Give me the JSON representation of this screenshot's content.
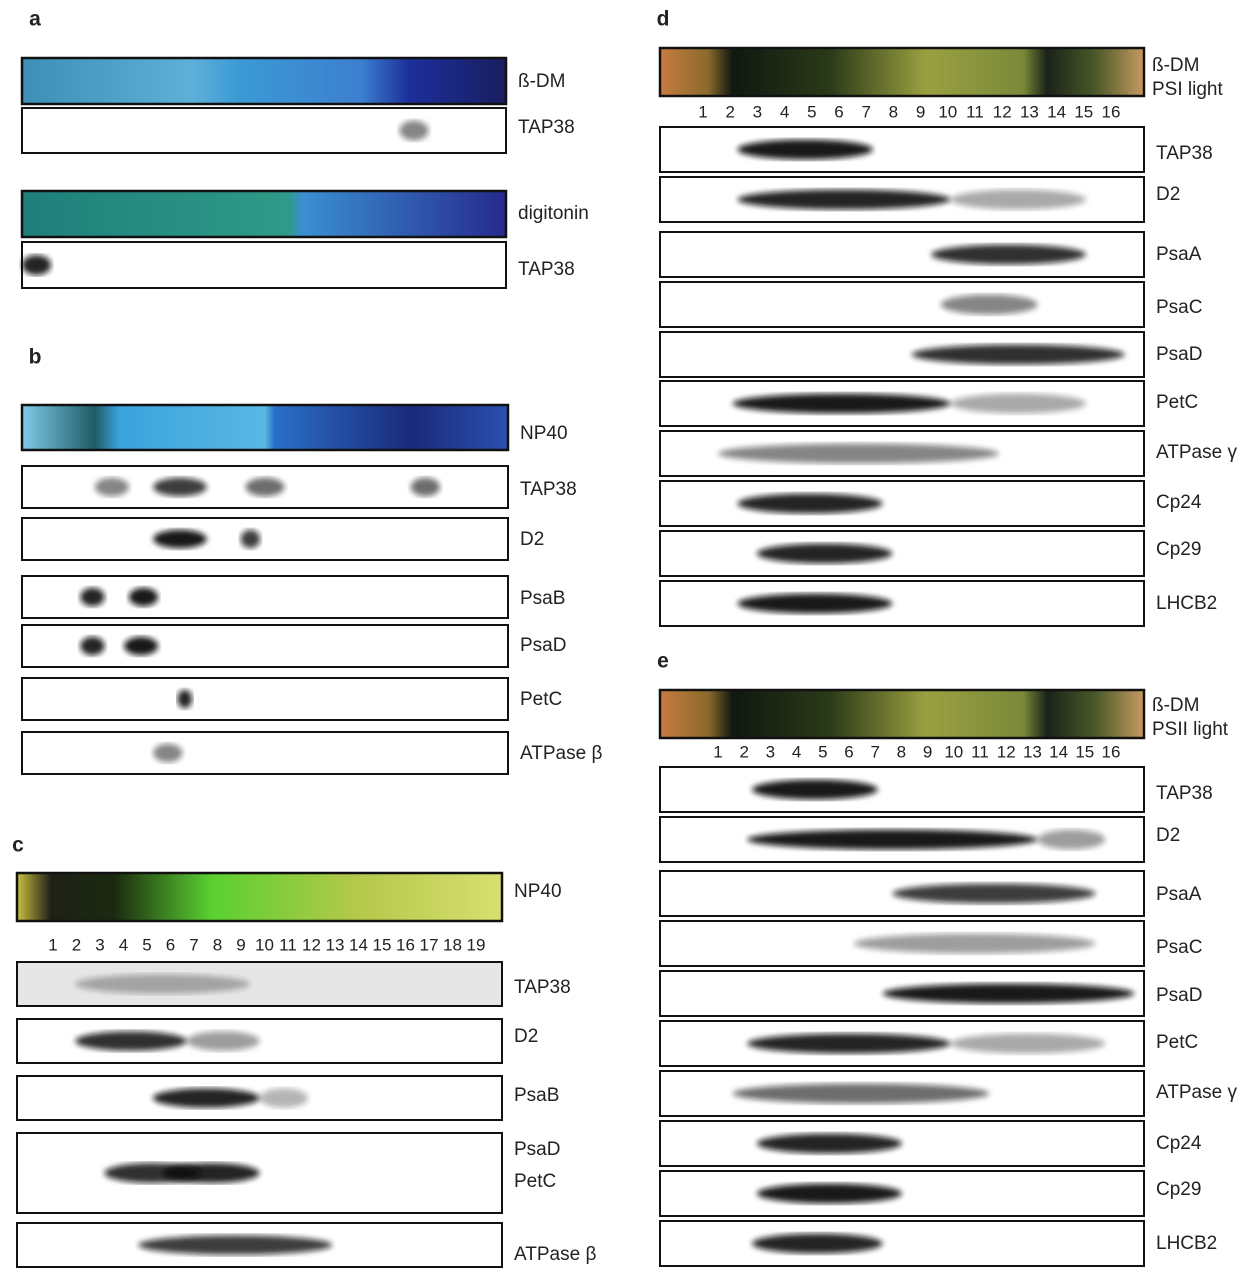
{
  "panels": [
    {
      "label": "a",
      "strips": [
        {
          "labels": [
            "ß-DM"
          ]
        },
        {
          "labels": [
            "TAP38"
          ]
        },
        {
          "labels": [
            "digitonin"
          ]
        },
        {
          "labels": [
            "TAP38"
          ]
        }
      ]
    },
    {
      "label": "b",
      "strips": [
        {
          "labels": [
            "NP40"
          ]
        },
        {
          "labels": [
            "TAP38"
          ]
        },
        {
          "labels": [
            "D2"
          ]
        },
        {
          "labels": [
            "PsaB"
          ]
        },
        {
          "labels": [
            "PsaD"
          ]
        },
        {
          "labels": [
            "PetC"
          ]
        },
        {
          "labels": [
            "ATPase β"
          ]
        }
      ]
    },
    {
      "label": "c",
      "lanes": [
        1,
        2,
        3,
        4,
        5,
        6,
        7,
        8,
        9,
        10,
        11,
        12,
        13,
        14,
        15,
        16,
        17,
        18,
        19
      ],
      "strips": [
        {
          "labels": [
            "NP40"
          ]
        },
        {
          "labels": [
            "TAP38"
          ]
        },
        {
          "labels": [
            "D2"
          ]
        },
        {
          "labels": [
            "PsaB"
          ]
        },
        {
          "labels": [
            "PsaD",
            "PetC"
          ]
        },
        {
          "labels": [
            "ATPase β"
          ]
        }
      ]
    },
    {
      "label": "d",
      "lanes": [
        1,
        2,
        3,
        4,
        5,
        6,
        7,
        8,
        9,
        10,
        11,
        12,
        13,
        14,
        15,
        16
      ],
      "strips": [
        {
          "labels": [
            "ß-DM",
            "PSI light"
          ]
        },
        {
          "labels": [
            "TAP38"
          ]
        },
        {
          "labels": [
            "D2"
          ]
        },
        {
          "labels": [
            "PsaA"
          ]
        },
        {
          "labels": [
            "PsaC"
          ]
        },
        {
          "labels": [
            "PsaD"
          ]
        },
        {
          "labels": [
            "PetC"
          ]
        },
        {
          "labels": [
            "ATPase γ"
          ]
        },
        {
          "labels": [
            "Cp24"
          ]
        },
        {
          "labels": [
            "Cp29"
          ]
        },
        {
          "labels": [
            "LHCB2"
          ]
        }
      ]
    },
    {
      "label": "e",
      "lanes": [
        1,
        2,
        3,
        4,
        5,
        6,
        7,
        8,
        9,
        10,
        11,
        12,
        13,
        14,
        15,
        16
      ],
      "strips": [
        {
          "labels": [
            "ß-DM",
            "PSII light"
          ]
        },
        {
          "labels": [
            "TAP38"
          ]
        },
        {
          "labels": [
            "D2"
          ]
        },
        {
          "labels": [
            "PsaA"
          ]
        },
        {
          "labels": [
            "PsaC"
          ]
        },
        {
          "labels": [
            "PsaD"
          ]
        },
        {
          "labels": [
            "PetC"
          ]
        },
        {
          "labels": [
            "ATPase γ"
          ]
        },
        {
          "labels": [
            "Cp24"
          ]
        },
        {
          "labels": [
            "Cp29"
          ]
        },
        {
          "labels": [
            "LHCB2"
          ]
        }
      ]
    }
  ]
}
